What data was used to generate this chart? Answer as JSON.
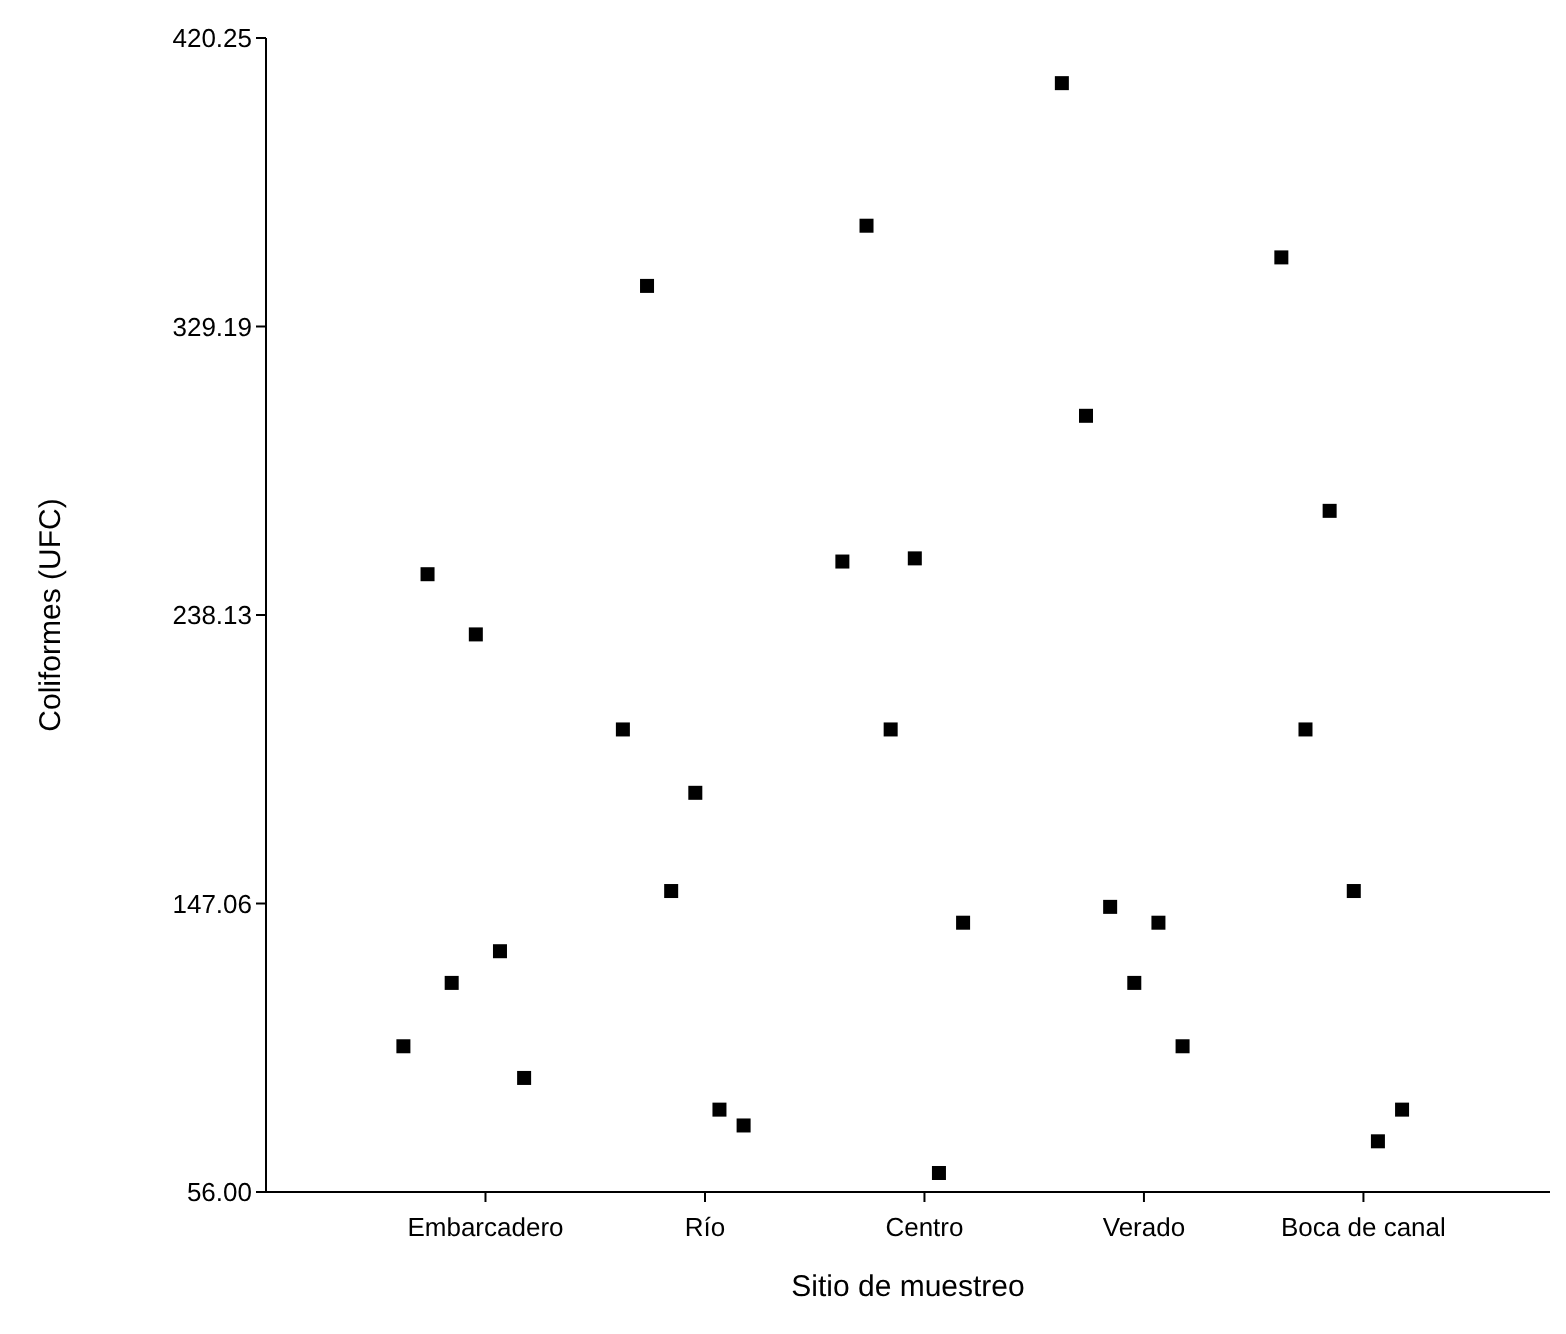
{
  "chart_data": {
    "type": "scatter",
    "xlabel": "Sitio de muestreo",
    "ylabel": "Coliformes (UFC)",
    "categories": [
      "Embarcadero",
      "Río",
      "Centro",
      "Verado",
      "Boca de canal"
    ],
    "ylim": [
      56,
      420.25
    ],
    "yticks": [
      {
        "value": 56,
        "label": "56.00"
      },
      147.06,
      238.13,
      329.19,
      420.25
    ],
    "marker": "square",
    "grid": false,
    "series": [
      {
        "color": "#000000",
        "x": [
          "Embarcadero",
          "Embarcadero",
          "Embarcadero",
          "Embarcadero",
          "Embarcadero",
          "Embarcadero",
          "Río",
          "Río",
          "Río",
          "Río",
          "Río",
          "Río",
          "Centro",
          "Centro",
          "Centro",
          "Centro",
          "Centro",
          "Centro",
          "Verado",
          "Verado",
          "Verado",
          "Verado",
          "Verado",
          "Verado",
          "Boca de canal",
          "Boca de canal",
          "Boca de canal",
          "Boca de canal",
          "Boca de canal",
          "Boca de canal"
        ],
        "values": [
          102,
          251,
          122,
          232,
          132,
          92,
          202,
          342,
          151,
          182,
          82,
          77,
          255,
          361,
          202,
          256,
          62,
          141,
          406,
          301,
          146,
          122,
          141,
          102,
          351,
          202,
          271,
          151,
          72,
          82
        ]
      }
    ]
  }
}
